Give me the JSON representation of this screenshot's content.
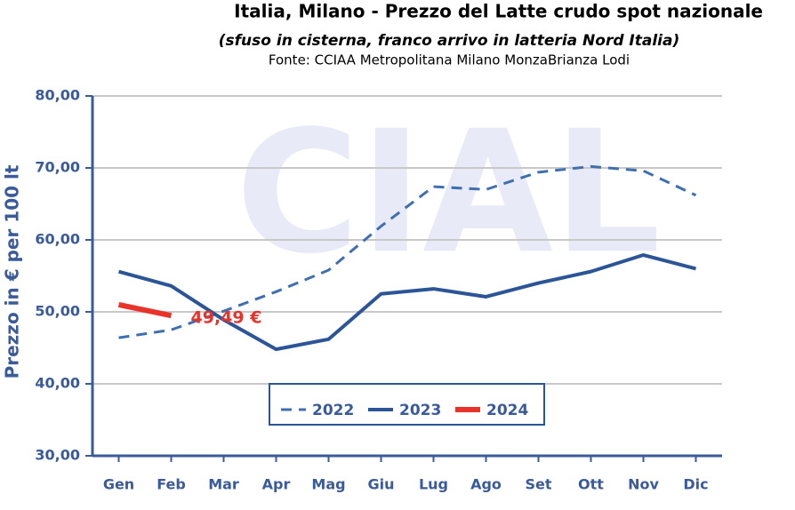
{
  "chart_data": {
    "type": "line",
    "title": "Italia, Milano - Prezzo del Latte crudo spot nazionale",
    "subtitle": "(sfuso in cisterna, franco arrivo in latteria Nord Italia)",
    "source": "Fonte: CCIAA Metropolitana Milano MonzaBrianza Lodi",
    "watermark": "CIAL",
    "ylabel": "Prezzo in € per 100 lt",
    "categories": [
      "Gen",
      "Feb",
      "Mar",
      "Apr",
      "Mag",
      "Giu",
      "Lug",
      "Ago",
      "Set",
      "Ott",
      "Nov",
      "Dic"
    ],
    "series": [
      {
        "name": "2022",
        "color": "#3f6fb0",
        "dashed": true,
        "values": [
          46.4,
          47.5,
          50.1,
          52.8,
          55.8,
          61.9,
          67.4,
          67.0,
          69.4,
          70.2,
          69.6,
          66.2
        ]
      },
      {
        "name": "2023",
        "color": "#2c5597",
        "dashed": false,
        "values": [
          55.6,
          53.6,
          48.9,
          44.8,
          46.2,
          52.5,
          53.2,
          52.1,
          54.0,
          55.6,
          57.9,
          56.0
        ]
      },
      {
        "name": "2024",
        "color": "#e8322a",
        "dashed": false,
        "values": [
          51.0,
          49.49,
          null,
          null,
          null,
          null,
          null,
          null,
          null,
          null,
          null,
          null
        ]
      }
    ],
    "annotation": {
      "text": "49,49 €",
      "series": 2,
      "index": 1
    },
    "ylim": [
      30,
      80
    ],
    "yticks": [
      {
        "value": 30,
        "label": "30,00"
      },
      {
        "value": 40,
        "label": "40,00"
      },
      {
        "value": 50,
        "label": "50,00"
      },
      {
        "value": 60,
        "label": "60,00"
      },
      {
        "value": 70,
        "label": "70,00"
      },
      {
        "value": 80,
        "label": "80,00"
      }
    ],
    "grid": true
  }
}
